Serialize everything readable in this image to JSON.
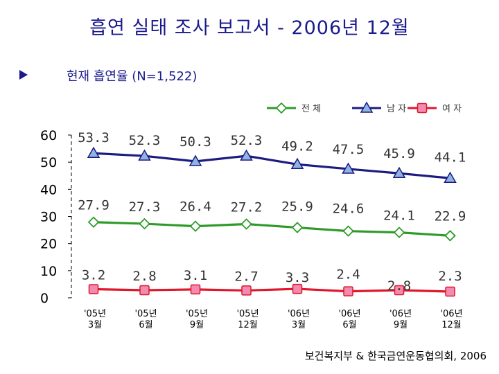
{
  "page": {
    "title": "흡연 실태 조사 보고서 - 2006년 12월",
    "subtitle": "현재 흡연율 (N=1,522)",
    "source": "보건복지부 & 한국금연운동협의회, 2006"
  },
  "chart_data": {
    "type": "line",
    "title": "현재 흡연율 (N=1,522)",
    "xlabel": "",
    "ylabel": "",
    "ylim": [
      0,
      60
    ],
    "yticks": [
      0,
      10,
      20,
      30,
      40,
      50,
      60
    ],
    "grid": false,
    "legend_position": "top-right",
    "categories": [
      [
        "'05년",
        "3월"
      ],
      [
        "'05년",
        "6월"
      ],
      [
        "'05년",
        "9월"
      ],
      [
        "'05년",
        "12월"
      ],
      [
        "'06년",
        "3월"
      ],
      [
        "'06년",
        "6월"
      ],
      [
        "'06년",
        "9월"
      ],
      [
        "'06년",
        "12월"
      ]
    ],
    "series": [
      {
        "name": "전 체",
        "color": "#2e9b28",
        "marker": "diamond",
        "label_color": "#333333",
        "values": [
          27.9,
          27.3,
          26.4,
          27.2,
          25.9,
          24.6,
          24.1,
          22.9
        ]
      },
      {
        "name": "남 자",
        "color": "#1c1c80",
        "marker_fill": "#8fb4e3",
        "marker": "triangle",
        "label_color": "#333333",
        "values": [
          53.3,
          52.3,
          50.3,
          52.3,
          49.2,
          47.5,
          45.9,
          44.1
        ]
      },
      {
        "name": "여 자",
        "color": "#e0162b",
        "marker_fill": "#f28bb0",
        "marker": "square",
        "label_color": "#333333",
        "values": [
          3.2,
          2.8,
          3.1,
          2.7,
          3.3,
          2.4,
          2.8,
          2.3
        ]
      }
    ]
  }
}
